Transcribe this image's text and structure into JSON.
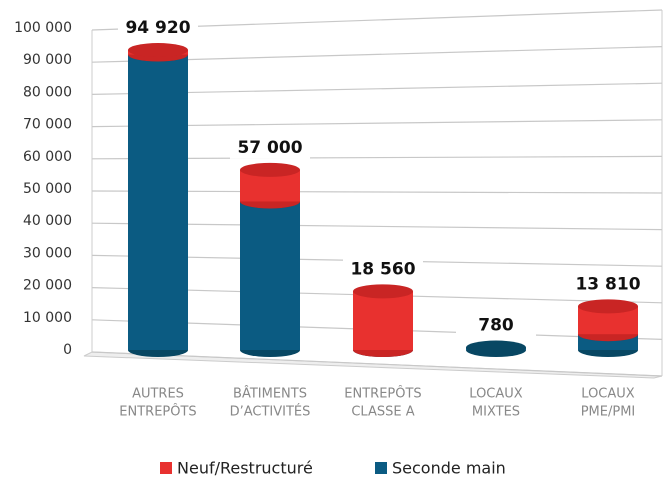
{
  "chart_data": {
    "type": "stacked_bar",
    "categories": [
      [
        "AUTRES",
        "ENTREPÔTS"
      ],
      [
        "BÂTIMENTS",
        "D’ACTIVITÉS"
      ],
      [
        "ENTREPÔTS",
        "CLASSE A"
      ],
      [
        "LOCAUX",
        "MIXTES"
      ],
      [
        "LOCAUX",
        "PME/PMI"
      ]
    ],
    "series": [
      {
        "name": "Seconde main",
        "color": "#0b5b82",
        "values": [
          93500,
          47000,
          0,
          780,
          5000
        ]
      },
      {
        "name": "Neuf/Restructuré",
        "color": "#e8312f",
        "values": [
          1420,
          10000,
          18560,
          0,
          8810
        ]
      }
    ],
    "legend_order": [
      1,
      0
    ],
    "totals": [
      94920,
      57000,
      18560,
      780,
      13810
    ],
    "total_labels": [
      "94 920",
      "57 000",
      "18 560",
      "780",
      "13 810"
    ],
    "ylim": [
      0,
      100000
    ],
    "yticks": [
      0,
      {
        "value": 10000,
        "label": "10 000"
      },
      {
        "value": 20000,
        "label": "20 000"
      },
      {
        "value": 30000,
        "label": "30 000"
      },
      {
        "value": 40000,
        "label": "40 000"
      },
      {
        "value": 50000,
        "label": "50 000"
      },
      {
        "value": 60000,
        "label": "60 000"
      },
      {
        "value": 70000,
        "label": "70 000"
      },
      {
        "value": 80000,
        "label": "80 000"
      },
      {
        "value": 90000,
        "label": "90 000"
      },
      {
        "value": 100000,
        "label": "100 000"
      }
    ],
    "grid": true
  }
}
